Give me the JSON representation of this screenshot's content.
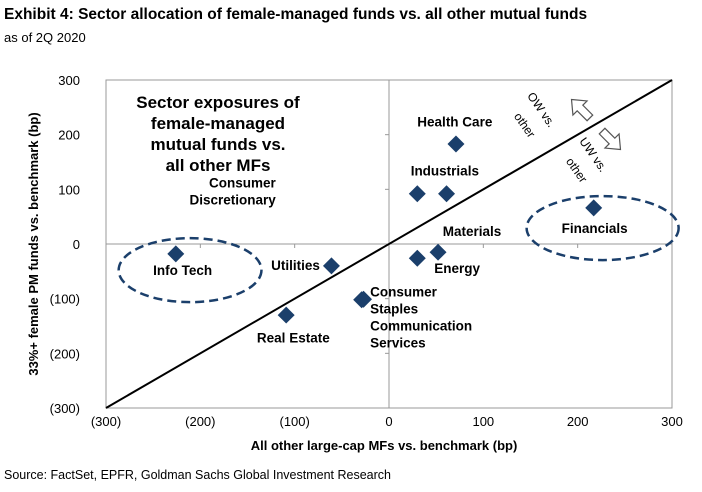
{
  "title": "Exhibit 4: Sector allocation of female-managed funds vs. all other mutual funds",
  "subtitle": "as of 2Q 2020",
  "source": "Source: FactSet, EPFR, Goldman Sachs Global Investment Research",
  "chart_data": {
    "type": "scatter",
    "xlabel": "All other large-cap MFs vs. benchmark (bp)",
    "ylabel": "33%+ female PM funds vs. benchmark (bp)",
    "xlim": [
      -300,
      300
    ],
    "ylim": [
      -300,
      300
    ],
    "x_ticks": [
      -300,
      -200,
      -100,
      0,
      100,
      200,
      300
    ],
    "x_tick_labels": [
      "(300)",
      "(200)",
      "(100)",
      "0",
      "100",
      "200",
      "300"
    ],
    "y_ticks": [
      300,
      200,
      100,
      0,
      -100,
      -200,
      -300
    ],
    "y_tick_labels": [
      "300",
      "200",
      "100",
      "0",
      "(100)",
      "(200)",
      "(300)"
    ],
    "annotation": [
      "Sector exposures of",
      "female-managed",
      "mutual funds vs.",
      "all other MFs"
    ],
    "ow_label": [
      "OW vs.",
      "other"
    ],
    "uw_label": [
      "UW vs.",
      "other"
    ],
    "marker_color": "#1b3f6b",
    "points": [
      {
        "name": "Health Care",
        "x": 71,
        "y": 183
      },
      {
        "name": "Industrials",
        "x": 30,
        "y": 92
      },
      {
        "name": "Consumer Discretionary",
        "x": 61,
        "y": 92
      },
      {
        "name": "Financials",
        "x": 217,
        "y": 66
      },
      {
        "name": "Materials",
        "x": 52,
        "y": -15
      },
      {
        "name": "Energy",
        "x": 30,
        "y": -26
      },
      {
        "name": "Utilities",
        "x": -61,
        "y": -40
      },
      {
        "name": "Info Tech",
        "x": -226,
        "y": -18
      },
      {
        "name": "Consumer Staples",
        "x": -29,
        "y": -102
      },
      {
        "name": "Communication Services",
        "x": -27,
        "y": -101
      },
      {
        "name": "Real Estate",
        "x": -109,
        "y": -130
      }
    ],
    "labels": [
      {
        "lines": [
          "Health Care"
        ],
        "x": 30,
        "y": 215
      },
      {
        "lines": [
          "Industrials"
        ],
        "x": 23,
        "y": 125
      },
      {
        "lines": [
          "Consumer",
          "Discretionary"
        ],
        "x": -120,
        "y": 103,
        "anchor": "end"
      },
      {
        "lines": [
          "Financials"
        ],
        "x": 183,
        "y": 20,
        "circled": true
      },
      {
        "lines": [
          "Materials"
        ],
        "x": 57,
        "y": 15
      },
      {
        "lines": [
          "Energy"
        ],
        "x": 48,
        "y": -53
      },
      {
        "lines": [
          "Utilities"
        ],
        "x": -125,
        "y": -48
      },
      {
        "lines": [
          "Info Tech"
        ],
        "x": -250,
        "y": -57,
        "circled": true
      },
      {
        "lines": [
          "Consumer",
          "Staples",
          "Communication",
          "Services"
        ],
        "x": -20,
        "y": -96
      },
      {
        "lines": [
          "Real Estate"
        ],
        "x": -140,
        "y": -180
      }
    ],
    "grid": false
  }
}
